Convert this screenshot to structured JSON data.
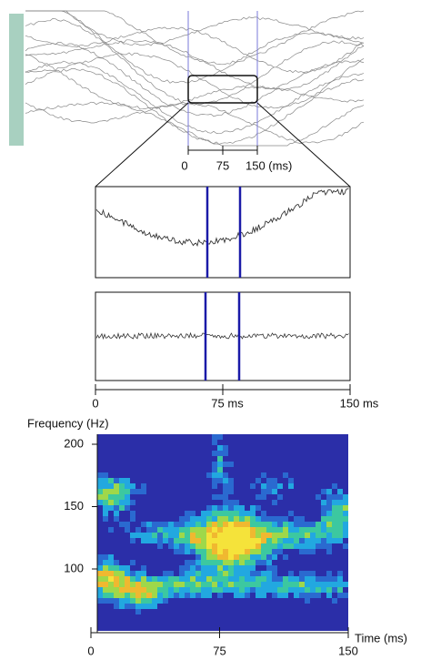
{
  "overview": {
    "scale_ticks": [
      "0",
      "75",
      "150 (ms)"
    ]
  },
  "traces": {
    "ticks": [
      "0",
      "75 ms",
      "150 ms"
    ]
  },
  "spectrogram": {
    "y_label": "Frequency (Hz)",
    "x_label": "Time (ms)",
    "yticks": [
      200,
      150,
      100
    ],
    "xticks": [
      0,
      75,
      150
    ]
  }
}
